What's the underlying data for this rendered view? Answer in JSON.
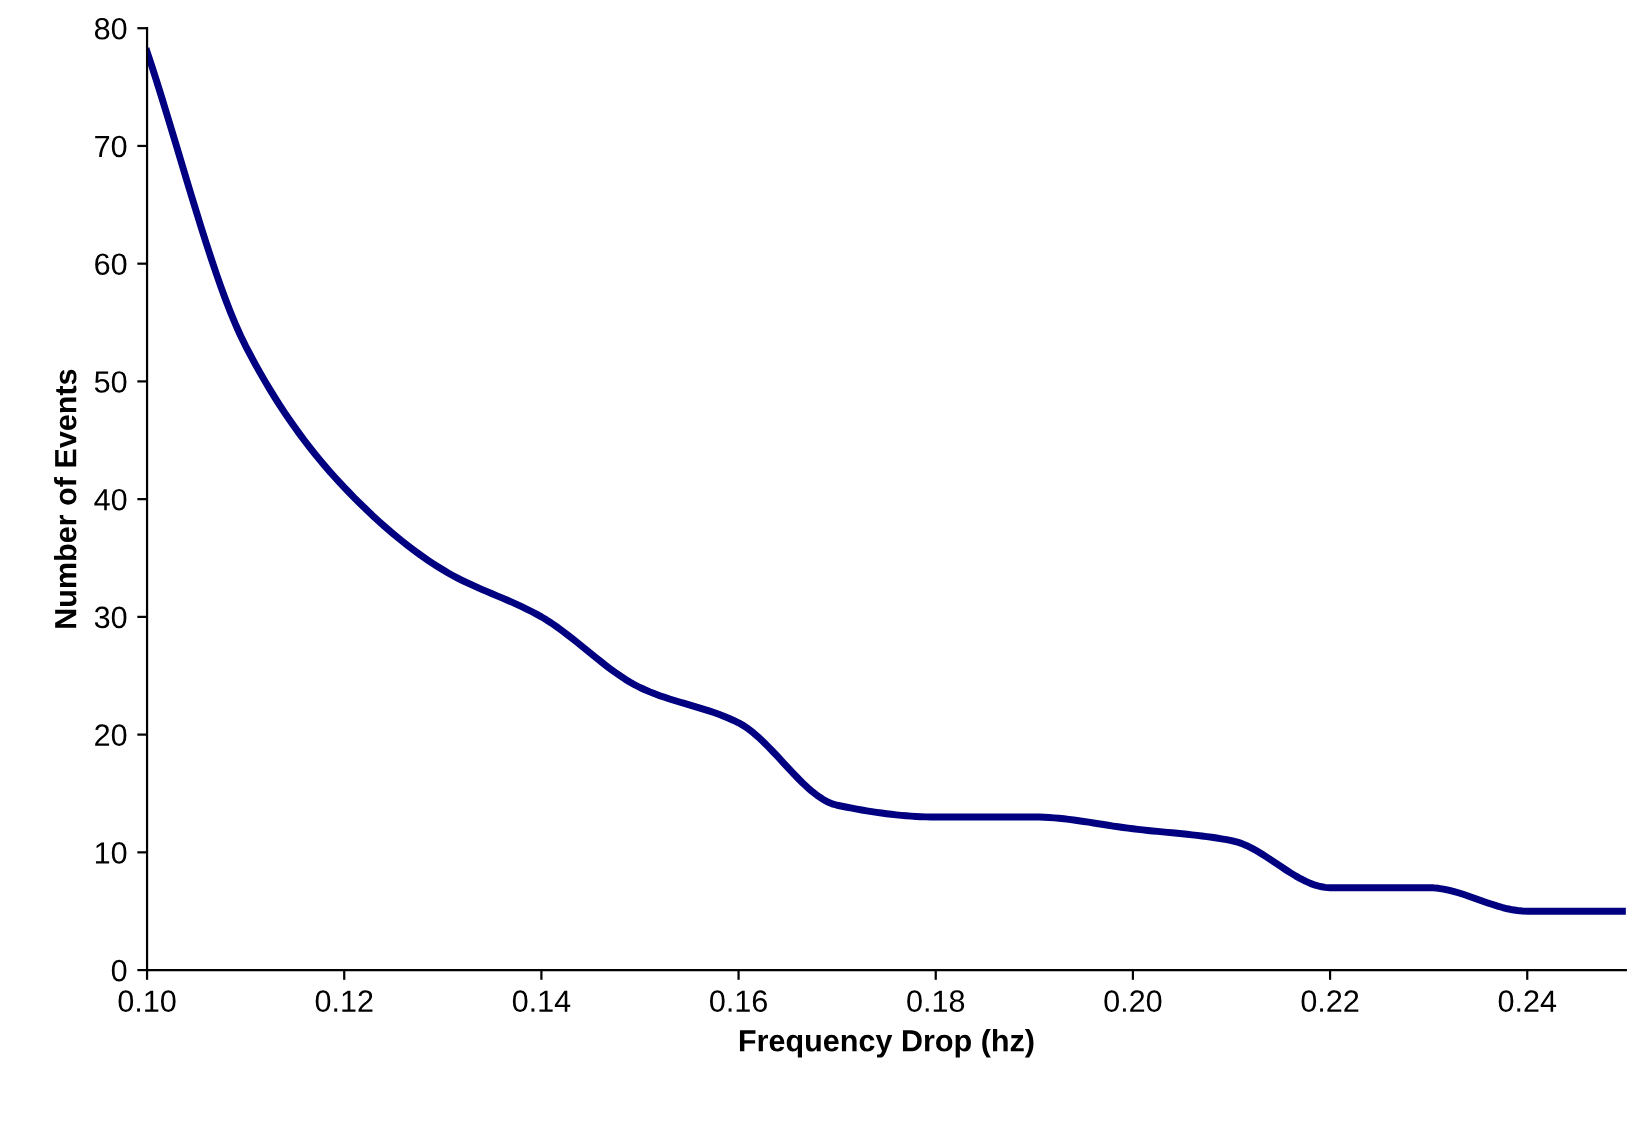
{
  "chart_data": {
    "type": "line",
    "xlabel": "Frequency Drop (hz)",
    "ylabel": "Number of Events",
    "x": [
      0.1,
      0.11,
      0.12,
      0.13,
      0.14,
      0.15,
      0.16,
      0.17,
      0.18,
      0.19,
      0.2,
      0.21,
      0.22,
      0.23,
      0.24,
      0.25
    ],
    "series": [
      {
        "color": "#000080",
        "values": [
          78,
          53,
          41,
          34,
          30,
          24,
          21,
          14,
          13,
          13,
          12,
          11,
          7,
          7,
          5,
          5
        ]
      }
    ],
    "xlim": [
      0.1,
      0.25
    ],
    "ylim": [
      0,
      80
    ],
    "xticks": [
      {
        "value": 0.1,
        "label": "0.10"
      },
      {
        "value": 0.12,
        "label": "0.12"
      },
      {
        "value": 0.14,
        "label": "0.14"
      },
      {
        "value": 0.16,
        "label": "0.16"
      },
      {
        "value": 0.18,
        "label": "0.18"
      },
      {
        "value": 0.2,
        "label": "0.20"
      },
      {
        "value": 0.22,
        "label": "0.22"
      },
      {
        "value": 0.24,
        "label": "0.24"
      }
    ],
    "yticks": [
      0,
      10,
      20,
      30,
      40,
      50,
      60,
      70,
      80
    ],
    "grid": false,
    "legend": false
  }
}
